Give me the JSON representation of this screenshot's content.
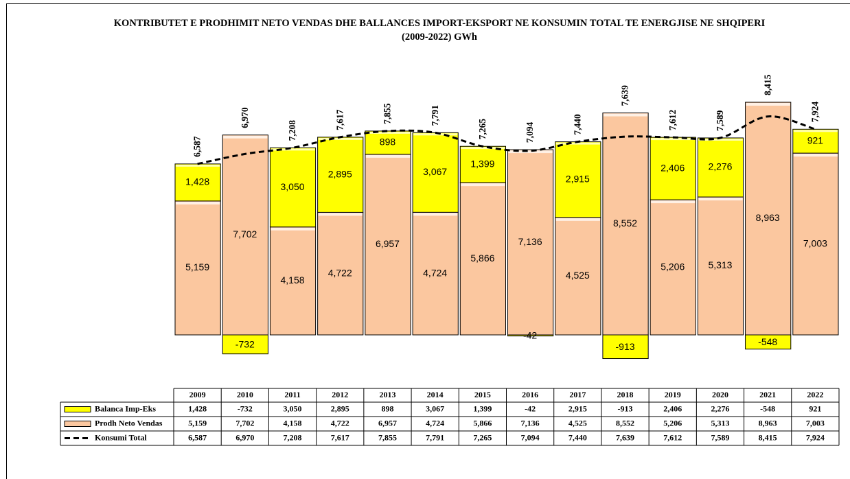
{
  "chart_data": {
    "type": "bar",
    "stacked": true,
    "title": "KONTRIBUTET E PRODHIMIT NETO VENDAS DHE BALLANCES IMPORT-EKSPORT NE KONSUMIN TOTAL TE ENERGJISE NE SHQIPERI (2009-2022) GWh",
    "categories": [
      "2009",
      "2010",
      "2011",
      "2012",
      "2013",
      "2014",
      "2015",
      "2016",
      "2017",
      "2018",
      "2019",
      "2020",
      "2021",
      "2022"
    ],
    "series": [
      {
        "name": "Balanca Imp-Eks",
        "type": "bar",
        "color": "#ffff00",
        "values": [
          1428,
          -732,
          3050,
          2895,
          898,
          3067,
          1399,
          -42,
          2915,
          -913,
          2406,
          2276,
          -548,
          921
        ],
        "value_labels": [
          "1,428",
          "-732",
          "3,050",
          "2,895",
          "898",
          "3,067",
          "1,399",
          "-42",
          "2,915",
          "-913",
          "2,406",
          "2,276",
          "-548",
          "921"
        ]
      },
      {
        "name": "Prodh Neto Vendas",
        "type": "bar",
        "color": "#fbc79f",
        "values": [
          5159,
          7702,
          4158,
          4722,
          6957,
          4724,
          5866,
          7136,
          4525,
          8552,
          5206,
          5313,
          8963,
          7003
        ],
        "value_labels": [
          "5,159",
          "7,702",
          "4,158",
          "4,722",
          "6,957",
          "4,724",
          "5,866",
          "7,136",
          "4,525",
          "8,552",
          "5,206",
          "5,313",
          "8,963",
          "7,003"
        ]
      },
      {
        "name": "Konsumi Total",
        "type": "line",
        "color": "#000000",
        "values": [
          6587,
          6970,
          7208,
          7617,
          7855,
          7791,
          7265,
          7094,
          7440,
          7639,
          7612,
          7589,
          8415,
          7924
        ],
        "value_labels": [
          "6,587",
          "6,970",
          "7,208",
          "7,617",
          "7,855",
          "7,791",
          "7,265",
          "7,094",
          "7,440",
          "7,639",
          "7,612",
          "7,589",
          "8,415",
          "7,924"
        ]
      }
    ]
  }
}
